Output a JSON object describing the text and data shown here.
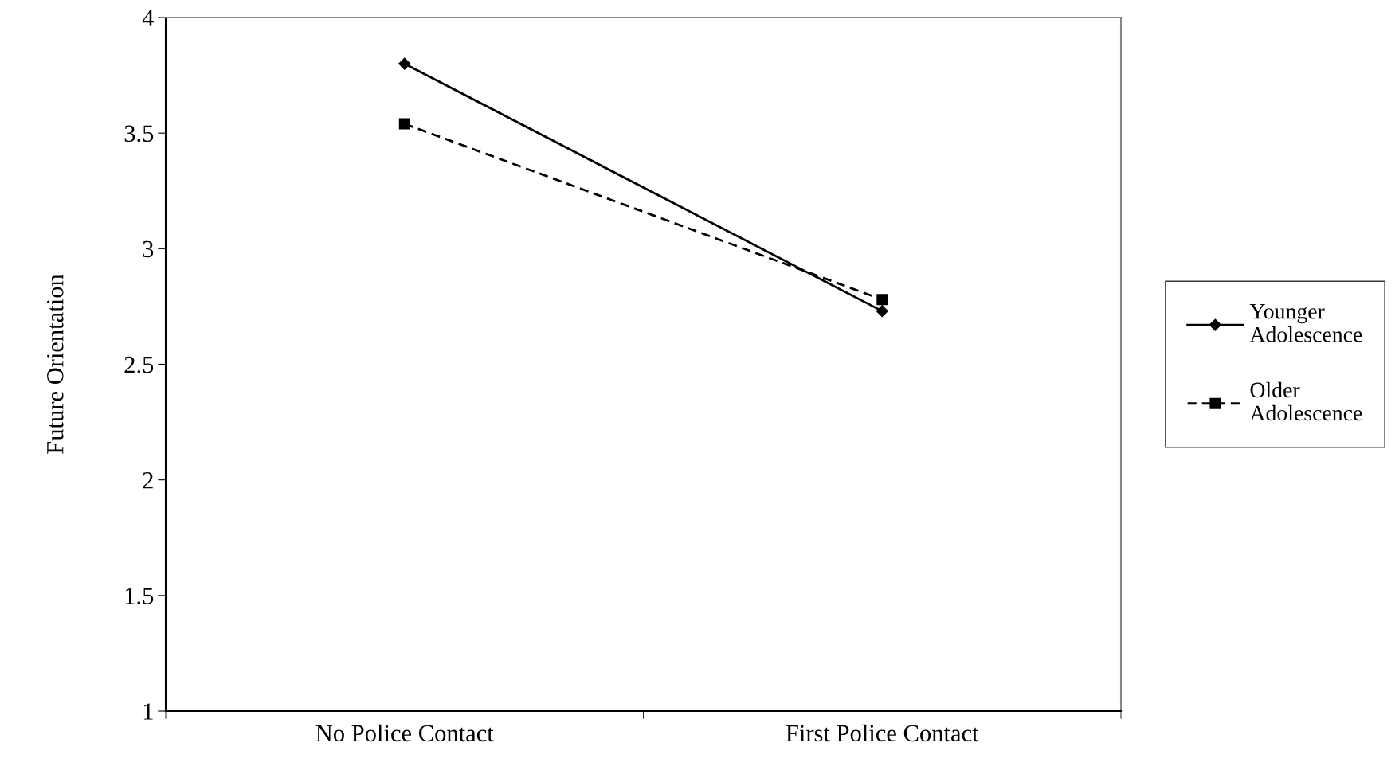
{
  "chart_data": {
    "type": "line",
    "ylabel": "Future Orientation",
    "categories": [
      "No Police Contact",
      "First Police Contact"
    ],
    "series": [
      {
        "name": "Younger\nAdolescence",
        "color": "#000000",
        "values": [
          3.8,
          2.73
        ],
        "marker": "diamond",
        "line_style": "solid"
      },
      {
        "name": "Older\nAdolescence",
        "color": "#000000",
        "values": [
          3.54,
          2.78
        ],
        "marker": "square",
        "line_style": "dashed"
      }
    ],
    "ylim": [
      1,
      4
    ],
    "yticks": [
      1,
      1.5,
      2,
      2.5,
      3,
      3.5,
      4
    ],
    "grid": false,
    "legend": "right"
  }
}
